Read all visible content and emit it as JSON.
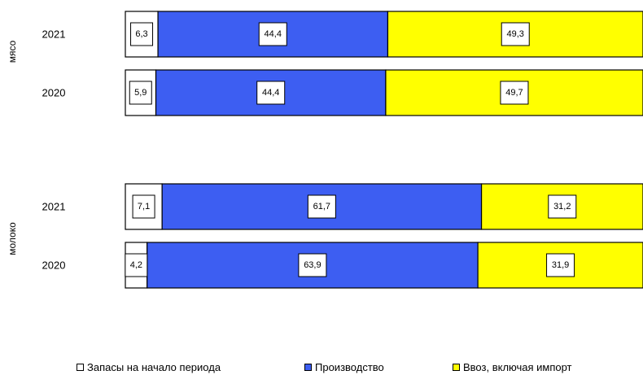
{
  "chart_data": {
    "type": "bar",
    "orientation": "horizontal",
    "stacked": true,
    "groups": [
      {
        "label": "мясо",
        "categories": [
          "2021",
          "2020"
        ]
      },
      {
        "label": "молоко",
        "categories": [
          "2021",
          "2020"
        ]
      }
    ],
    "series": [
      {
        "name": "Запасы на начало периода",
        "color": "#ffffff",
        "values": [
          6.3,
          5.9,
          7.1,
          4.2
        ],
        "labels": [
          "6,3",
          "5,9",
          "7,1",
          "4,2"
        ]
      },
      {
        "name": "Производство",
        "color": "#3d5ef2",
        "values": [
          44.4,
          44.4,
          61.7,
          63.9
        ],
        "labels": [
          "44,4",
          "44,4",
          "61,7",
          "63,9"
        ]
      },
      {
        "name": "Ввоз, включая импорт",
        "color": "#ffff00",
        "values": [
          49.3,
          49.7,
          31.2,
          31.9
        ],
        "labels": [
          "49,3",
          "49,7",
          "31,2",
          "31,9"
        ]
      }
    ],
    "xlim": [
      0,
      100
    ],
    "grid": false,
    "legend_position": "bottom"
  }
}
